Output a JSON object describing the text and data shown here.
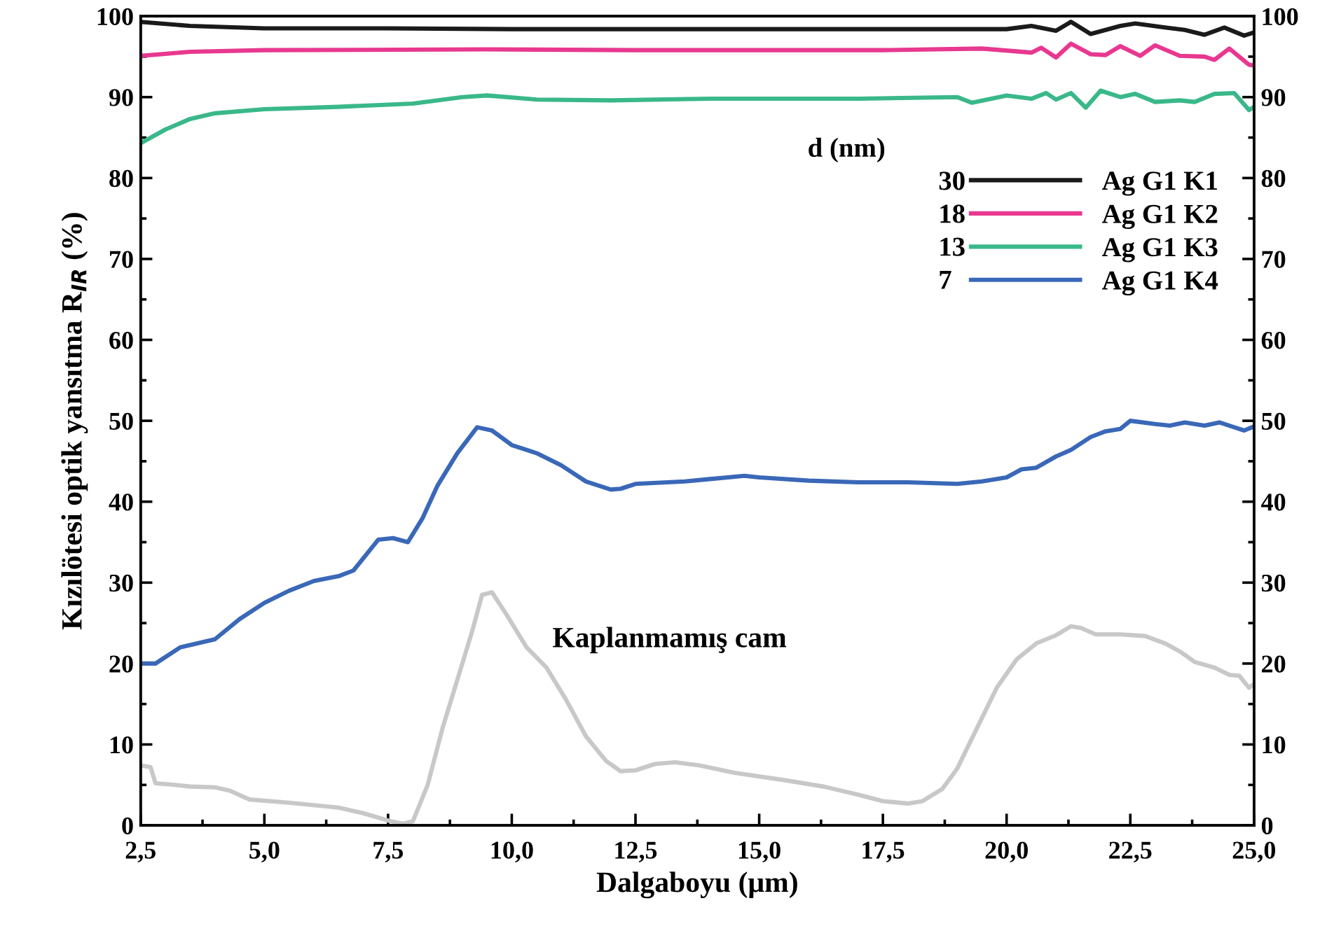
{
  "chart_data": {
    "type": "line",
    "xlabel": "Dalgaboyu (μm)",
    "ylabel": "Kızılötesi optik yansıtma R$_{IR}$ (%)",
    "legend_title": "d (nm)",
    "legend": "top right",
    "grid": false,
    "line_style": "solid",
    "marker": "none",
    "xlim": [
      2.5,
      25.0
    ],
    "xticks": [
      {
        "value": 2.5,
        "label": "2,5"
      },
      {
        "value": 5.0,
        "label": "5,0"
      },
      {
        "value": 7.5,
        "label": "7,5"
      },
      {
        "value": 10.0,
        "label": "10,0"
      },
      {
        "value": 12.5,
        "label": "12,5"
      },
      {
        "value": 15.0,
        "label": "15,0"
      },
      {
        "value": 17.5,
        "label": "17,5"
      },
      {
        "value": 20.0,
        "label": "20,0"
      },
      {
        "value": 22.5,
        "label": "22,5"
      },
      {
        "value": 25.0,
        "label": "25,0"
      }
    ],
    "ylim": [
      0,
      100
    ],
    "yticks": [
      0,
      10,
      20,
      30,
      40,
      50,
      60,
      70,
      80,
      90,
      100
    ],
    "y2lim": [
      0,
      100
    ],
    "y2ticks": [
      0,
      10,
      20,
      30,
      40,
      50,
      60,
      70,
      80,
      90,
      100
    ],
    "annotations": [
      "30",
      "18",
      "13",
      "7",
      "Kaplanmamış cam"
    ],
    "series": [
      {
        "name": "Ag G1 K1",
        "color": "#1a1a1a",
        "x": [
          2.5,
          3.5,
          5.0,
          7.5,
          10.0,
          12.5,
          15.0,
          17.5,
          20.0,
          20.5,
          21.0,
          21.3,
          21.7,
          22.3,
          22.6,
          23.2,
          23.6,
          24.0,
          24.4,
          24.8,
          25.0
        ],
        "values": [
          99.3,
          98.8,
          98.5,
          98.5,
          98.4,
          98.4,
          98.4,
          98.4,
          98.4,
          98.8,
          98.2,
          99.3,
          97.8,
          98.8,
          99.1,
          98.6,
          98.3,
          97.7,
          98.6,
          97.6,
          98.0
        ]
      },
      {
        "name": "Ag G1 K2",
        "color": "#e8388f",
        "x": [
          2.5,
          3.5,
          5.0,
          9.5,
          12.5,
          15.0,
          17.5,
          19.5,
          20.5,
          20.7,
          21.0,
          21.3,
          21.7,
          22.0,
          22.3,
          22.7,
          23.0,
          23.5,
          24.0,
          24.2,
          24.5,
          24.9,
          25.0
        ],
        "values": [
          95.1,
          95.6,
          95.8,
          95.9,
          95.8,
          95.8,
          95.8,
          96.0,
          95.5,
          96.1,
          94.9,
          96.6,
          95.3,
          95.2,
          96.3,
          95.1,
          96.4,
          95.1,
          95.0,
          94.6,
          96.0,
          94.0,
          93.9
        ]
      },
      {
        "name": "Ag G1 K3",
        "color": "#3ab88a",
        "x": [
          2.5,
          3.0,
          3.5,
          4.0,
          5.0,
          6.5,
          8.0,
          9.0,
          9.5,
          10.5,
          12.0,
          14.0,
          17.0,
          19.0,
          19.3,
          20.0,
          20.5,
          20.8,
          21.0,
          21.3,
          21.6,
          21.9,
          22.3,
          22.6,
          23.0,
          23.5,
          23.8,
          24.2,
          24.6,
          24.9,
          25.0
        ],
        "values": [
          84.3,
          86.0,
          87.3,
          88.0,
          88.5,
          88.8,
          89.2,
          90.0,
          90.2,
          89.7,
          89.6,
          89.8,
          89.8,
          90.0,
          89.3,
          90.2,
          89.8,
          90.5,
          89.7,
          90.5,
          88.7,
          90.8,
          90.0,
          90.4,
          89.4,
          89.6,
          89.4,
          90.4,
          90.5,
          88.4,
          88.8
        ]
      },
      {
        "name": "Ag G1 K4",
        "color": "#3a68b8",
        "x": [
          2.5,
          2.8,
          3.3,
          4.0,
          4.5,
          5.0,
          5.5,
          6.0,
          6.5,
          6.8,
          7.3,
          7.6,
          7.9,
          8.2,
          8.5,
          8.9,
          9.3,
          9.6,
          10.0,
          10.5,
          11.0,
          11.5,
          12.0,
          12.2,
          12.5,
          13.5,
          14.0,
          14.7,
          15.0,
          16.0,
          17.0,
          18.0,
          19.0,
          19.5,
          20.0,
          20.3,
          20.6,
          21.0,
          21.3,
          21.7,
          22.0,
          22.3,
          22.5,
          23.0,
          23.3,
          23.6,
          24.0,
          24.3,
          24.6,
          24.8,
          25.0
        ],
        "values": [
          20.0,
          20.0,
          22.0,
          23.0,
          25.5,
          27.5,
          29.0,
          30.2,
          30.8,
          31.5,
          35.3,
          35.5,
          35.0,
          38.0,
          42.0,
          46.0,
          49.2,
          48.8,
          47.0,
          46.0,
          44.5,
          42.5,
          41.5,
          41.6,
          42.2,
          42.5,
          42.8,
          43.2,
          43.0,
          42.6,
          42.4,
          42.4,
          42.2,
          42.5,
          43.0,
          44.0,
          44.2,
          45.6,
          46.4,
          48.0,
          48.7,
          49.0,
          50.0,
          49.6,
          49.4,
          49.8,
          49.4,
          49.8,
          49.2,
          48.8,
          49.3
        ]
      },
      {
        "color": "#c8c8c8",
        "x": [
          2.5,
          2.7,
          2.8,
          3.2,
          3.5,
          4.0,
          4.3,
          4.7,
          5.5,
          6.5,
          7.0,
          7.5,
          7.8,
          8.0,
          8.3,
          8.6,
          8.9,
          9.2,
          9.4,
          9.6,
          9.9,
          10.3,
          10.7,
          11.1,
          11.5,
          11.9,
          12.2,
          12.5,
          12.9,
          13.3,
          13.8,
          14.5,
          15.5,
          16.3,
          17.0,
          17.5,
          18.0,
          18.3,
          18.7,
          19.0,
          19.4,
          19.8,
          20.2,
          20.6,
          21.0,
          21.3,
          21.5,
          21.8,
          22.3,
          22.8,
          23.2,
          23.5,
          23.8,
          24.2,
          24.5,
          24.7,
          24.9,
          25.0
        ],
        "values": [
          7.4,
          7.2,
          5.2,
          5.0,
          4.8,
          4.7,
          4.3,
          3.2,
          2.8,
          2.2,
          1.5,
          0.6,
          0.2,
          0.5,
          5.0,
          12.0,
          18.0,
          24.0,
          28.5,
          28.8,
          26.0,
          22.0,
          19.5,
          15.5,
          11.0,
          8.0,
          6.7,
          6.8,
          7.6,
          7.8,
          7.4,
          6.5,
          5.6,
          4.8,
          3.8,
          3.0,
          2.7,
          3.0,
          4.5,
          7.0,
          12.0,
          17.0,
          20.5,
          22.5,
          23.5,
          24.6,
          24.4,
          23.6,
          23.6,
          23.4,
          22.5,
          21.5,
          20.2,
          19.5,
          18.6,
          18.5,
          17.0,
          17.5
        ]
      }
    ]
  }
}
